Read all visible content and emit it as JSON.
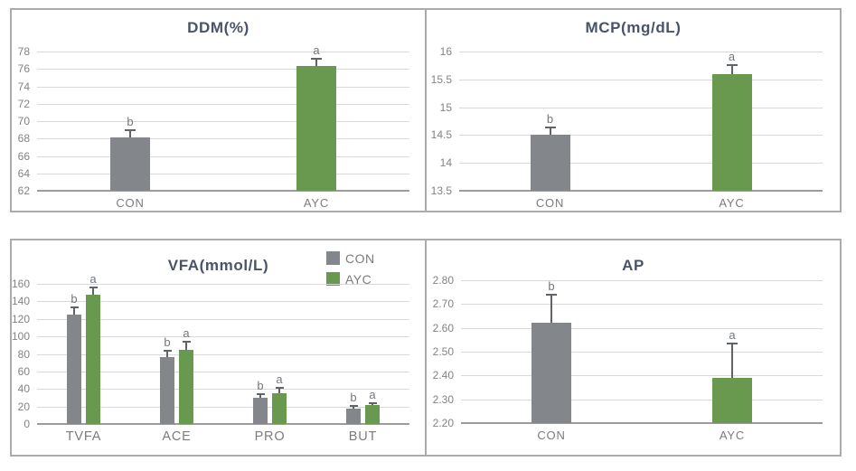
{
  "series_colors": {
    "con": "#83868a",
    "ayc": "#68994e"
  },
  "style_colors": {
    "gridline": "#d9d9d9",
    "axis_line": "#9c9c9c",
    "panel_border": "#ababab",
    "title_text": "#4a5468",
    "tick_text": "#838383",
    "category_text": "#7c7c7c",
    "sig_text": "#72777e",
    "error_bar": "#606468"
  },
  "chart_data": [
    {
      "id": "ddm",
      "type": "bar",
      "title": "DDM(%)",
      "categories": [
        "CON",
        "AYC"
      ],
      "values": [
        68.1,
        76.3
      ],
      "errors": [
        0.9,
        0.9
      ],
      "sig_labels": [
        "b",
        "a"
      ],
      "bar_colors": [
        "con",
        "ayc"
      ],
      "ylim": [
        62,
        78
      ],
      "yticks": [
        "78",
        "76",
        "74",
        "72",
        "70",
        "68",
        "66",
        "64",
        "62"
      ],
      "grid": true,
      "legend_position": "none"
    },
    {
      "id": "mcp",
      "type": "bar",
      "title": "MCP(mg/dL)",
      "categories": [
        "CON",
        "AYC"
      ],
      "values": [
        14.5,
        15.6
      ],
      "errors": [
        0.13,
        0.16
      ],
      "sig_labels": [
        "b",
        "a"
      ],
      "bar_colors": [
        "con",
        "ayc"
      ],
      "ylim": [
        13.5,
        16
      ],
      "yticks": [
        "16",
        "15.5",
        "15",
        "14.5",
        "14",
        "13.5"
      ],
      "grid": true,
      "legend_position": "none"
    },
    {
      "id": "vfa",
      "type": "grouped-bar",
      "title": "VFA(mmol/L)",
      "categories": [
        "TVFA",
        "ACE",
        "PRO",
        "BUT"
      ],
      "series": [
        {
          "name": "CON",
          "color": "con",
          "values": [
            125,
            76,
            30,
            18
          ],
          "errors": [
            8,
            8,
            4,
            3
          ],
          "sig_labels": [
            "b",
            "b",
            "b",
            "b"
          ]
        },
        {
          "name": "AYC",
          "color": "ayc",
          "values": [
            148,
            85,
            35,
            22
          ],
          "errors": [
            8,
            8.5,
            6.5,
            2
          ],
          "sig_labels": [
            "a",
            "a",
            "a",
            "a"
          ]
        }
      ],
      "ylim": [
        0,
        160
      ],
      "yticks": [
        "160",
        "140",
        "120",
        "100",
        "80",
        "60",
        "40",
        "20",
        "0"
      ],
      "grid": true,
      "legend_position": "top-right"
    },
    {
      "id": "ap",
      "type": "bar",
      "title": "AP",
      "categories": [
        "CON",
        "AYC"
      ],
      "values": [
        2.62,
        2.39
      ],
      "errors": [
        0.12,
        0.145
      ],
      "sig_labels": [
        "b",
        "a"
      ],
      "bar_colors": [
        "con",
        "ayc"
      ],
      "ylim": [
        2.2,
        2.8
      ],
      "yticks": [
        "2.80",
        "2.70",
        "2.60",
        "2.50",
        "2.40",
        "2.30",
        "2.20"
      ],
      "grid": true,
      "legend_position": "none"
    }
  ]
}
